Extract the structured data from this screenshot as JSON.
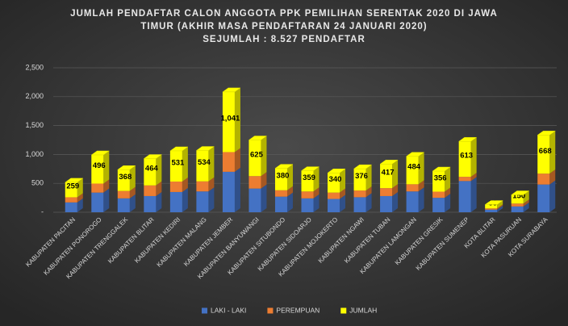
{
  "chart_data": {
    "type": "bar3d_stacked",
    "title": [
      "JUMLAH PENDAFTAR CALON ANGGOTA PPK PEMILIHAN SERENTAK 2020 DI JAWA",
      "TIMUR (AKHIR MASA PENDAFTARAN 24 JANUARI 2020)",
      "SEJUMLAH : 8.527 PENDAFTAR"
    ],
    "categories": [
      "KABUPATEN PACITAN",
      "KABUPATEN PONOROGO",
      "KABUPATEN TRENGGALEK",
      "KABUPATEN BLITAR",
      "KABUPATEN KEDIRI",
      "KABUPATEN MALANG",
      "KABUPATEN JEMBER",
      "KABUPATEN BANYUWANGI",
      "KABUPATEN SITUBONDO",
      "KABUPATEN SIDOARJO",
      "KABUPATEN MOJOKERTO",
      "KABUPATEN NGAWI",
      "KABUPATEN TUBAN",
      "KABUPATEN LAMONGAN",
      "KABUPATEN GRESIK",
      "KABUPATEN SUMENEP",
      "KOTA BLITAR",
      "KOTA PASURUAN",
      "KOTA SURABAYA"
    ],
    "series": [
      {
        "name": "LAKI - LAKI",
        "color": "#4472c4",
        "values": [
          170,
          340,
          240,
          280,
          350,
          360,
          700,
          410,
          270,
          240,
          230,
          260,
          280,
          360,
          250,
          540,
          45,
          100,
          480
        ]
      },
      {
        "name": "PEREMPUAN",
        "color": "#ed7d31",
        "values": [
          89,
          156,
          128,
          184,
          181,
          174,
          341,
          215,
          110,
          119,
          110,
          116,
          137,
          124,
          106,
          73,
          21,
          50,
          188
        ]
      },
      {
        "name": "JUMLAH",
        "color": "#ffff00",
        "values": [
          259,
          496,
          368,
          464,
          531,
          534,
          1041,
          625,
          380,
          359,
          340,
          376,
          417,
          484,
          356,
          613,
          66,
          150,
          668
        ],
        "value_labels": [
          "259",
          "496",
          "368",
          "464",
          "531",
          "534",
          "1,041",
          "625",
          "380",
          "359",
          "340",
          "376",
          "417",
          "484",
          "356",
          "613",
          "66",
          "150",
          "668"
        ]
      }
    ],
    "ylim": [
      0,
      2500
    ],
    "yticks": [
      {
        "value": 0,
        "label": "-"
      },
      500,
      {
        "value": 1000,
        "label": "1,000"
      },
      {
        "value": 1500,
        "label": "1,500"
      },
      {
        "value": 2000,
        "label": "2,000"
      },
      {
        "value": 2500,
        "label": "2,500"
      }
    ],
    "grid": true,
    "legend": "bottom"
  }
}
